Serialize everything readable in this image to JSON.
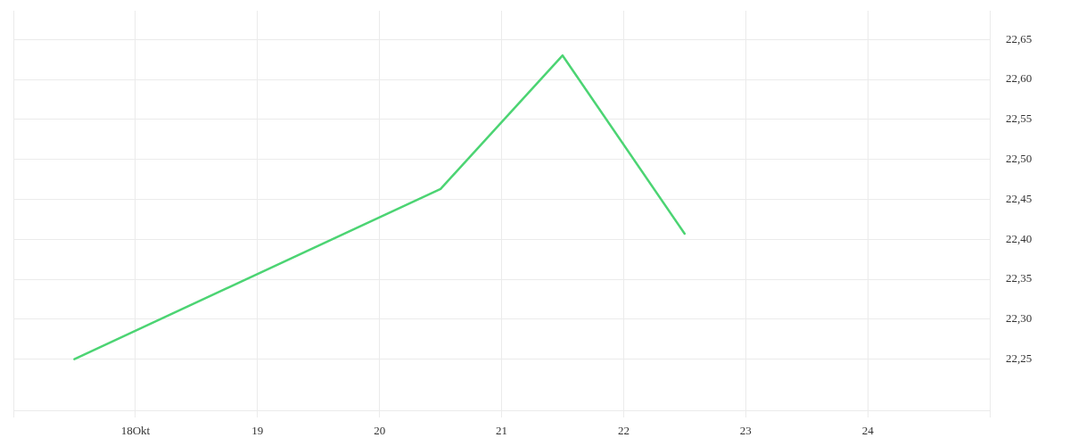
{
  "chart_data": {
    "type": "line",
    "x": [
      17.5,
      20.5,
      21.5,
      22.5
    ],
    "series": [
      {
        "color": "#4cd473",
        "values": [
          22.25,
          22.463,
          22.63,
          22.407
        ]
      }
    ],
    "xlim": [
      17,
      25
    ],
    "xticks": [
      {
        "value": 17,
        "label": null
      },
      {
        "value": 18,
        "label": "18Okt"
      },
      19,
      20,
      21,
      22,
      23,
      24,
      {
        "value": 25,
        "label": null
      }
    ],
    "ylim": [
      22.186,
      22.686
    ],
    "yticks": [
      {
        "value": 22.25,
        "label": "22,25"
      },
      {
        "value": 22.3,
        "label": "22,30"
      },
      {
        "value": 22.35,
        "label": "22,35"
      },
      {
        "value": 22.4,
        "label": "22,40"
      },
      {
        "value": 22.45,
        "label": "22,45"
      },
      {
        "value": 22.5,
        "label": "22,50"
      },
      {
        "value": 22.55,
        "label": "22,55"
      },
      {
        "value": 22.6,
        "label": "22,60"
      },
      {
        "value": 22.65,
        "label": "22,65"
      }
    ],
    "grid": true,
    "marker": "none"
  }
}
